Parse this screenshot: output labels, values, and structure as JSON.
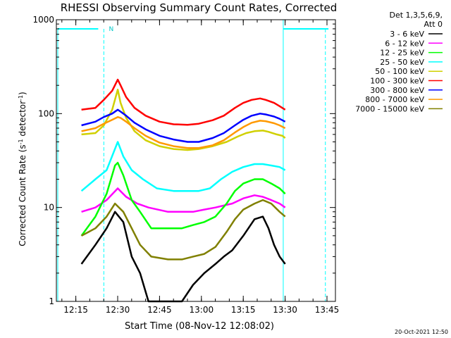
{
  "chart_data": {
    "type": "line",
    "title": "RHESSI Observing Summary Count Rates, Corrected",
    "xlabel": "Start Time (08-Nov-12 12:08:02)",
    "ylabel_main": "Corrected Count Rate (s",
    "ylabel_sup1": "-1",
    "ylabel_mid": " detector",
    "ylabel_sup2": "-1",
    "ylabel_end": ")",
    "y_scale": "log",
    "ylim": [
      1,
      1000
    ],
    "xlim_minutes": [
      0,
      100
    ],
    "x_ticks": [
      {
        "label": "12:15",
        "minute": 6.97
      },
      {
        "label": "12:30",
        "minute": 21.97
      },
      {
        "label": "12:45",
        "minute": 36.97
      },
      {
        "label": "13:00",
        "minute": 51.97
      },
      {
        "label": "13:15",
        "minute": 66.97
      },
      {
        "label": "13:30",
        "minute": 81.97
      },
      {
        "label": "13:45",
        "minute": 96.97
      }
    ],
    "y_ticks": [
      {
        "label": "1",
        "value": 1
      },
      {
        "label": "10",
        "value": 10
      },
      {
        "label": "100",
        "value": 100
      },
      {
        "label": "1000",
        "value": 1000
      }
    ],
    "legend_header": [
      "Det 1,3,5,6,9,",
      "Att 0"
    ],
    "night_marker": "N",
    "timestamp": "20-Oct-2021 12:50",
    "series": [
      {
        "name": "3 - 6 keV",
        "color": "#000000",
        "points": [
          [
            9,
            2.5
          ],
          [
            14,
            4
          ],
          [
            18,
            6
          ],
          [
            21,
            9
          ],
          [
            24,
            7
          ],
          [
            27,
            3
          ],
          [
            30,
            2
          ],
          [
            33,
            1
          ],
          [
            40,
            1
          ],
          [
            45,
            1
          ],
          [
            49,
            1.5
          ],
          [
            53,
            2
          ],
          [
            57,
            2.5
          ],
          [
            60,
            3
          ],
          [
            63,
            3.5
          ],
          [
            67,
            5
          ],
          [
            71,
            7.5
          ],
          [
            74,
            8
          ],
          [
            76,
            6
          ],
          [
            78,
            4
          ],
          [
            80,
            3
          ],
          [
            82,
            2.5
          ]
        ]
      },
      {
        "name": "6 - 12 keV",
        "color": "#ff00ff",
        "points": [
          [
            9,
            9
          ],
          [
            14,
            10
          ],
          [
            18,
            12
          ],
          [
            22,
            16
          ],
          [
            25,
            13
          ],
          [
            29,
            11
          ],
          [
            33,
            10
          ],
          [
            40,
            9
          ],
          [
            45,
            9
          ],
          [
            49,
            9
          ],
          [
            53,
            9.5
          ],
          [
            57,
            10
          ],
          [
            60,
            10.5
          ],
          [
            63,
            11
          ],
          [
            67,
            12.5
          ],
          [
            71,
            13.5
          ],
          [
            74,
            13
          ],
          [
            77,
            12
          ],
          [
            80,
            11
          ],
          [
            82,
            10
          ]
        ]
      },
      {
        "name": "12 - 25 keV",
        "color": "#00ff00",
        "points": [
          [
            9,
            5
          ],
          [
            14,
            8
          ],
          [
            18,
            14
          ],
          [
            21,
            28
          ],
          [
            22,
            30
          ],
          [
            24,
            22
          ],
          [
            27,
            12
          ],
          [
            30,
            9
          ],
          [
            34,
            6
          ],
          [
            40,
            6
          ],
          [
            45,
            6
          ],
          [
            49,
            6.5
          ],
          [
            53,
            7
          ],
          [
            57,
            8
          ],
          [
            61,
            11
          ],
          [
            64,
            15
          ],
          [
            67,
            18
          ],
          [
            71,
            20
          ],
          [
            74,
            20
          ],
          [
            77,
            18
          ],
          [
            80,
            16
          ],
          [
            82,
            14
          ]
        ]
      },
      {
        "name": "25 - 50 keV",
        "color": "#00ffff",
        "points": [
          [
            9,
            15
          ],
          [
            14,
            20
          ],
          [
            18,
            25
          ],
          [
            22,
            50
          ],
          [
            24,
            35
          ],
          [
            27,
            25
          ],
          [
            31,
            20
          ],
          [
            36,
            16
          ],
          [
            42,
            15
          ],
          [
            47,
            15
          ],
          [
            51,
            15
          ],
          [
            55,
            16
          ],
          [
            59,
            20
          ],
          [
            63,
            24
          ],
          [
            67,
            27
          ],
          [
            71,
            29
          ],
          [
            74,
            29
          ],
          [
            77,
            28
          ],
          [
            80,
            27
          ],
          [
            82,
            25
          ]
        ]
      },
      {
        "name": "50 - 100 keV",
        "color": "#d0d000",
        "points": [
          [
            9,
            60
          ],
          [
            14,
            62
          ],
          [
            17,
            75
          ],
          [
            20,
            110
          ],
          [
            22,
            180
          ],
          [
            23,
            130
          ],
          [
            25,
            90
          ],
          [
            28,
            65
          ],
          [
            32,
            52
          ],
          [
            37,
            45
          ],
          [
            42,
            42
          ],
          [
            47,
            41
          ],
          [
            51,
            42
          ],
          [
            56,
            45
          ],
          [
            61,
            50
          ],
          [
            65,
            57
          ],
          [
            68,
            62
          ],
          [
            71,
            65
          ],
          [
            74,
            66
          ],
          [
            76,
            64
          ],
          [
            79,
            60
          ],
          [
            81,
            58
          ],
          [
            82,
            55
          ]
        ]
      },
      {
        "name": "100 - 300 keV",
        "color": "#ff0000",
        "points": [
          [
            9,
            110
          ],
          [
            14,
            115
          ],
          [
            17,
            140
          ],
          [
            20,
            175
          ],
          [
            22,
            230
          ],
          [
            23,
            200
          ],
          [
            25,
            150
          ],
          [
            28,
            115
          ],
          [
            32,
            95
          ],
          [
            37,
            82
          ],
          [
            42,
            77
          ],
          [
            47,
            76
          ],
          [
            51,
            78
          ],
          [
            56,
            85
          ],
          [
            60,
            95
          ],
          [
            64,
            115
          ],
          [
            67,
            130
          ],
          [
            70,
            140
          ],
          [
            73,
            145
          ],
          [
            75,
            140
          ],
          [
            78,
            130
          ],
          [
            80,
            120
          ],
          [
            82,
            110
          ]
        ]
      },
      {
        "name": "300 - 800 keV",
        "color": "#0000ff",
        "points": [
          [
            9,
            75
          ],
          [
            14,
            82
          ],
          [
            17,
            92
          ],
          [
            20,
            100
          ],
          [
            22,
            110
          ],
          [
            23,
            105
          ],
          [
            25,
            95
          ],
          [
            28,
            80
          ],
          [
            32,
            68
          ],
          [
            37,
            58
          ],
          [
            42,
            53
          ],
          [
            47,
            50
          ],
          [
            51,
            50
          ],
          [
            56,
            55
          ],
          [
            60,
            62
          ],
          [
            64,
            75
          ],
          [
            67,
            86
          ],
          [
            70,
            95
          ],
          [
            73,
            100
          ],
          [
            75,
            98
          ],
          [
            78,
            93
          ],
          [
            80,
            88
          ],
          [
            82,
            82
          ]
        ]
      },
      {
        "name": "800 - 7000 keV",
        "color": "#ff9900",
        "points": [
          [
            9,
            65
          ],
          [
            14,
            70
          ],
          [
            17,
            78
          ],
          [
            20,
            86
          ],
          [
            22,
            92
          ],
          [
            23,
            90
          ],
          [
            25,
            82
          ],
          [
            28,
            70
          ],
          [
            32,
            58
          ],
          [
            37,
            49
          ],
          [
            42,
            45
          ],
          [
            47,
            43
          ],
          [
            51,
            43
          ],
          [
            56,
            46
          ],
          [
            60,
            52
          ],
          [
            64,
            63
          ],
          [
            67,
            72
          ],
          [
            70,
            80
          ],
          [
            73,
            84
          ],
          [
            75,
            83
          ],
          [
            78,
            79
          ],
          [
            80,
            75
          ],
          [
            82,
            70
          ]
        ]
      },
      {
        "name": "7000 - 15000 keV",
        "color": "#808000",
        "points": [
          [
            9,
            5
          ],
          [
            14,
            6
          ],
          [
            18,
            8
          ],
          [
            21,
            11
          ],
          [
            24,
            9
          ],
          [
            27,
            6
          ],
          [
            30,
            4
          ],
          [
            34,
            3
          ],
          [
            40,
            2.8
          ],
          [
            45,
            2.8
          ],
          [
            49,
            3
          ],
          [
            53,
            3.2
          ],
          [
            57,
            3.8
          ],
          [
            61,
            5.5
          ],
          [
            64,
            7.5
          ],
          [
            67,
            9.5
          ],
          [
            71,
            11
          ],
          [
            74,
            12
          ],
          [
            77,
            11
          ],
          [
            80,
            9
          ],
          [
            82,
            8
          ]
        ]
      }
    ]
  }
}
